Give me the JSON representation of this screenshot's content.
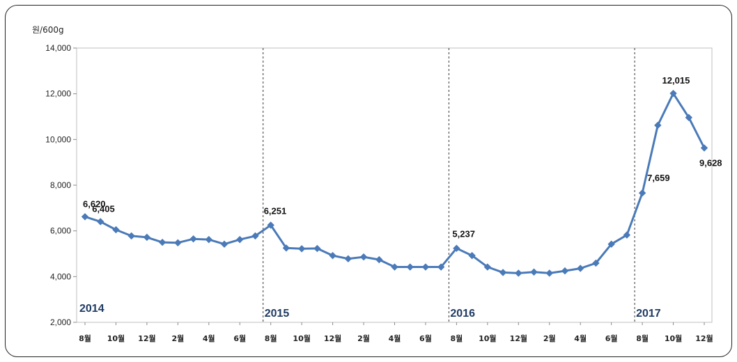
{
  "chart_data": {
    "type": "line",
    "unit_label": "원/600g",
    "ylim": [
      2000,
      14000
    ],
    "yticks": [
      "2,000",
      "4,000",
      "6,000",
      "8,000",
      "10,000",
      "12,000",
      "14,000"
    ],
    "ytick_values": [
      2000,
      4000,
      6000,
      8000,
      10000,
      12000,
      14000
    ],
    "xtick_labels": [
      "8월",
      "10월",
      "12월",
      "2월",
      "4월",
      "6월",
      "8월",
      "10월",
      "12월",
      "2월",
      "4월",
      "6월",
      "8월",
      "10월",
      "12월",
      "2월",
      "4월",
      "6월",
      "8월",
      "10월",
      "12월"
    ],
    "series": [
      {
        "color": "#4a7ab8",
        "values": [
          6620,
          6405,
          6050,
          5780,
          5720,
          5500,
          5480,
          5650,
          5620,
          5420,
          5620,
          5780,
          6251,
          5250,
          5220,
          5230,
          4920,
          4780,
          4860,
          4740,
          4420,
          4420,
          4420,
          4420,
          5237,
          4920,
          4420,
          4180,
          4150,
          4200,
          4150,
          4250,
          4360,
          4590,
          5420,
          5820,
          7659,
          10620,
          12015,
          10960,
          9628
        ]
      }
    ],
    "data_labels": [
      {
        "index": 0,
        "text": "6,620"
      },
      {
        "index": 1,
        "text": "6,405"
      },
      {
        "index": 12,
        "text": "6,251"
      },
      {
        "index": 24,
        "text": "5,237"
      },
      {
        "index": 36,
        "text": "7,659"
      },
      {
        "index": 38,
        "text": "12,015"
      },
      {
        "index": 40,
        "text": "9,628"
      }
    ],
    "year_markers": [
      {
        "index": 0,
        "text": "2014",
        "line": false
      },
      {
        "index": 12,
        "text": "2015",
        "line": true
      },
      {
        "index": 24,
        "text": "2016",
        "line": true
      },
      {
        "index": 36,
        "text": "2017",
        "line": true
      }
    ]
  }
}
